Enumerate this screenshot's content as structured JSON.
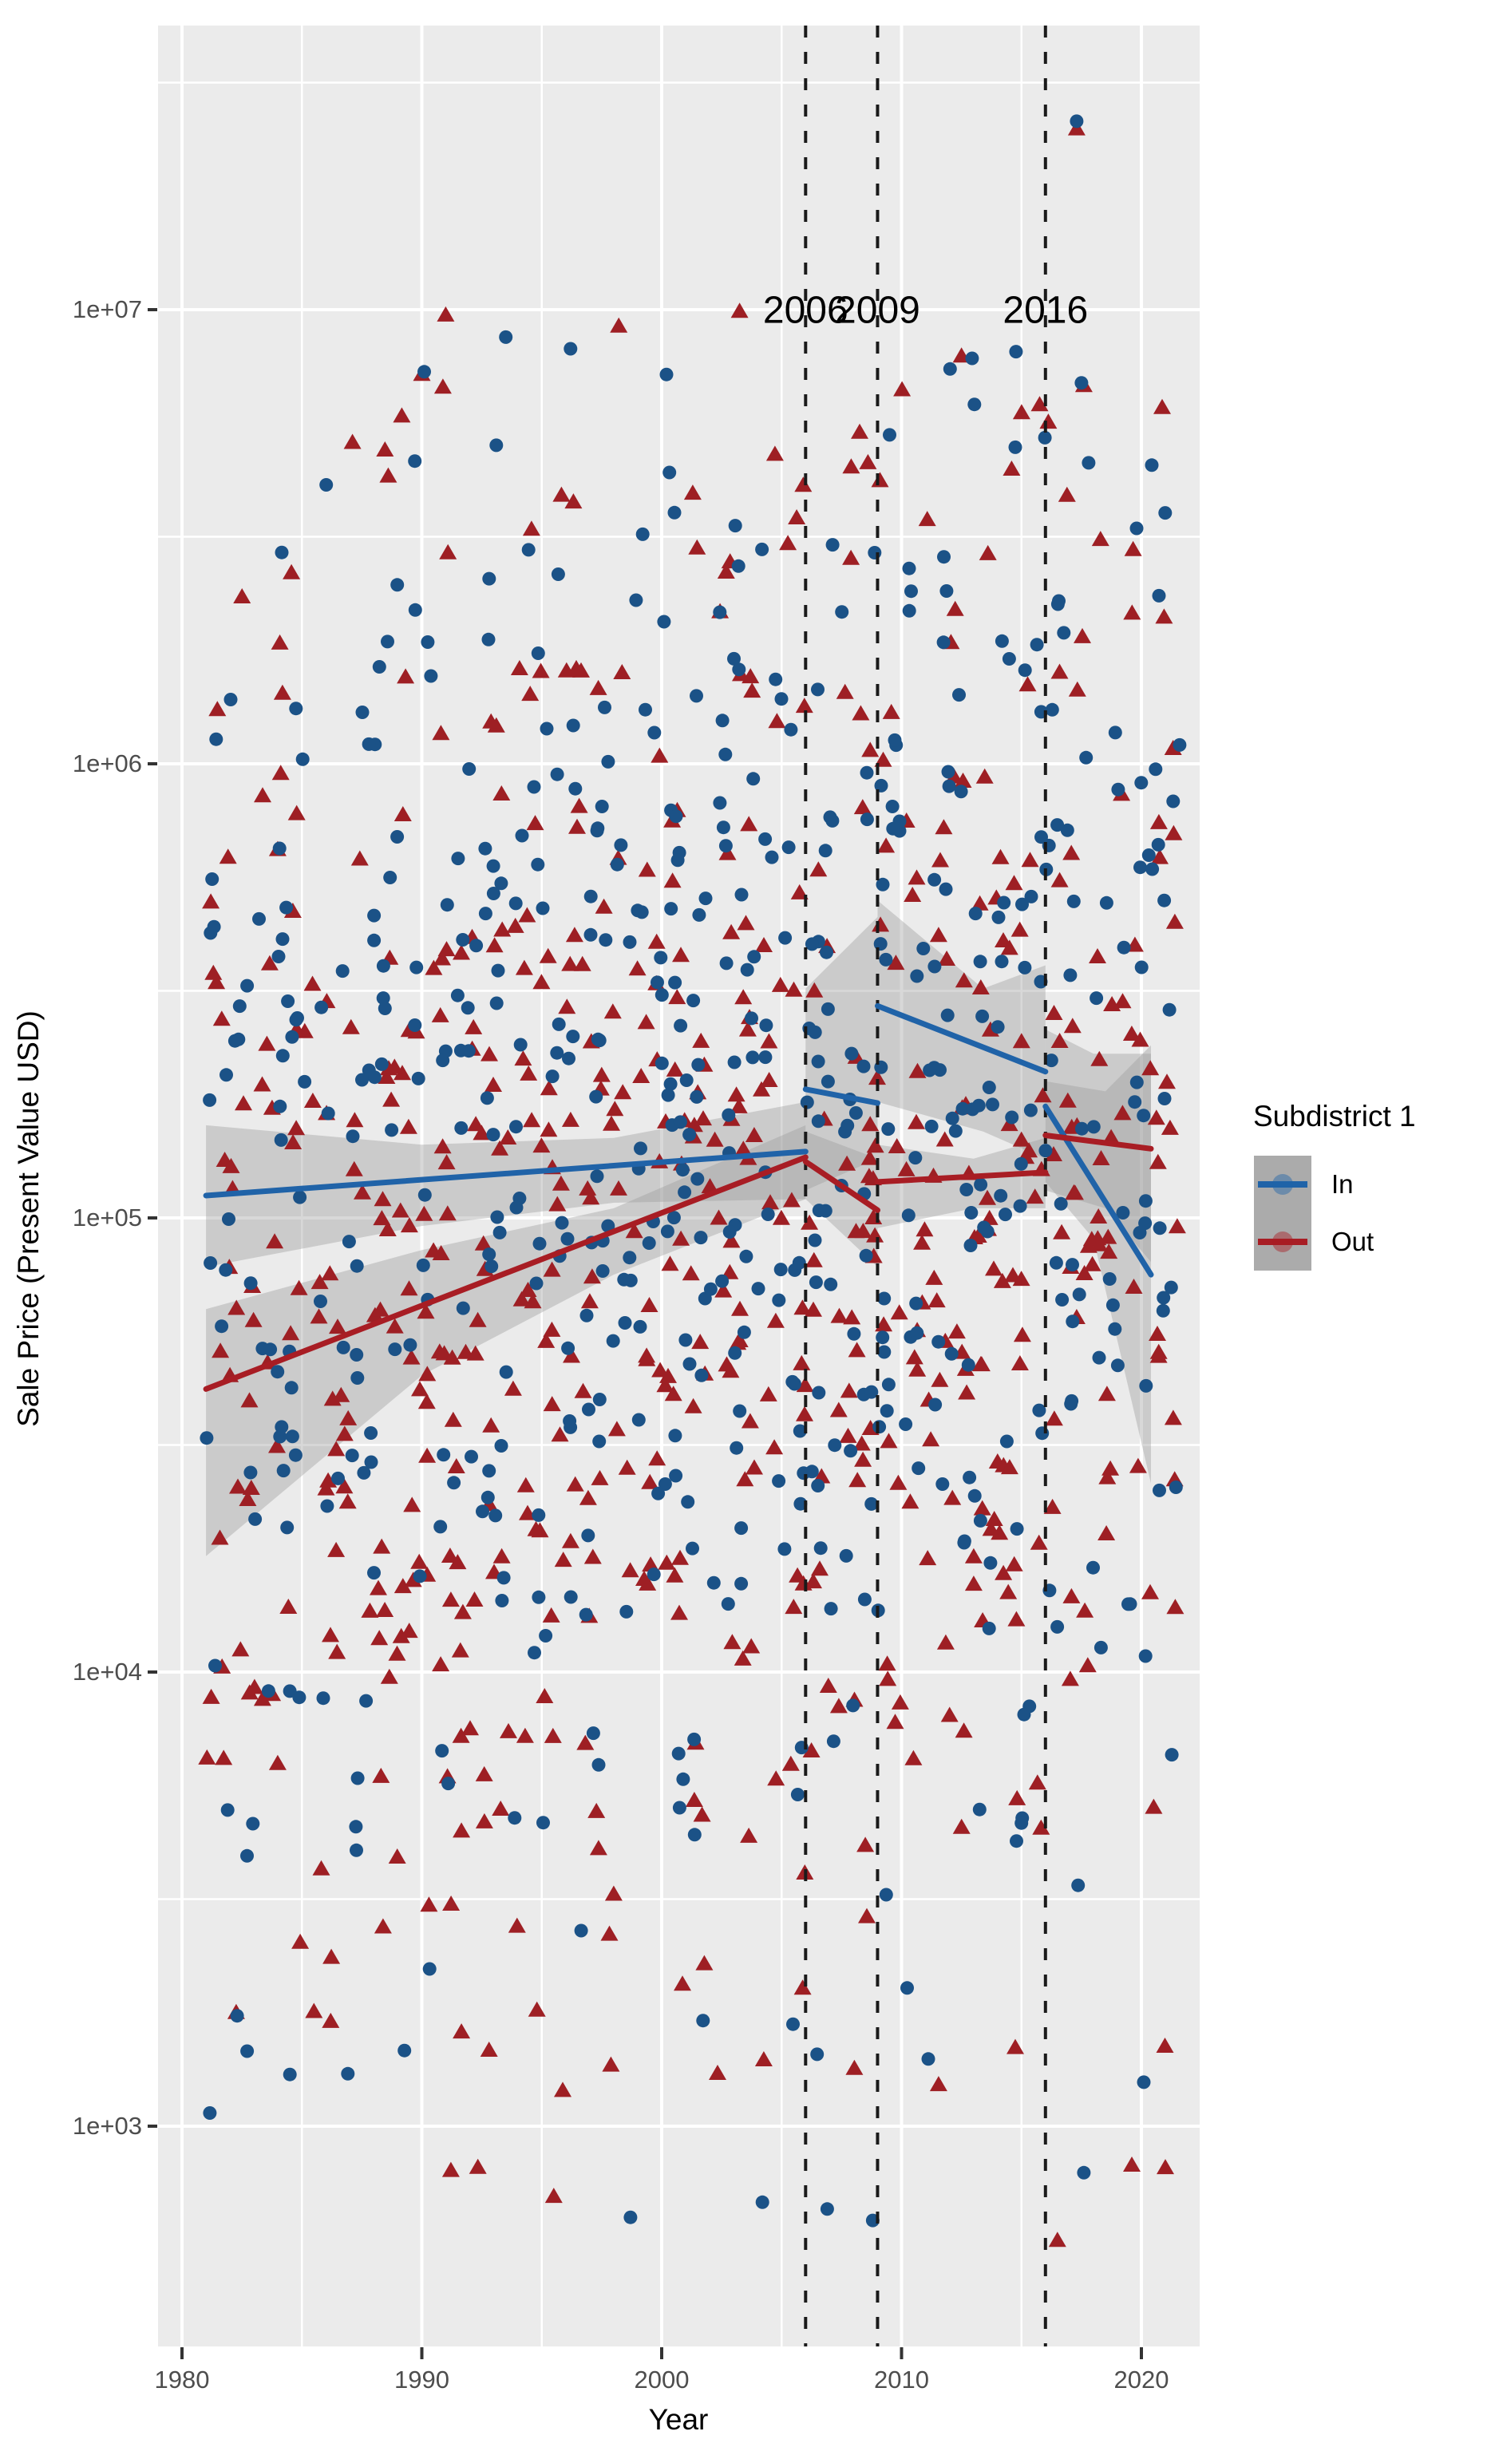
{
  "figure": {
    "background": "#ffffff",
    "panel_fill": "#ebebeb",
    "grid_color": "#ffffff",
    "tick_mark_color": "#333333",
    "tick_label_color": "#4d4d4d"
  },
  "axes": {
    "x_title": "Year",
    "y_title": "Sale Price (Present Value USD)",
    "x_tick_labels": [
      "1980",
      "1990",
      "2000",
      "2010",
      "2020"
    ],
    "y_tick_labels": [
      "1e+07",
      "1e+06",
      "1e+05",
      "1e+04",
      "1e+03"
    ]
  },
  "legend": {
    "title": "Subdistrict 1",
    "items": [
      {
        "label": "In",
        "color": "#2063A8",
        "point_color": "#1B5287",
        "marker": "circle"
      },
      {
        "label": "Out",
        "color": "#A81D24",
        "point_color": "#9E1F24",
        "marker": "triangle"
      }
    ]
  },
  "chart_data": {
    "type": "scatter",
    "title": "",
    "xlabel": "Year",
    "ylabel": "Sale Price (Present Value USD)",
    "x_ticks": [
      1980,
      1990,
      2000,
      2010,
      2020
    ],
    "x_minor_ticks": [
      1985,
      1995,
      2005,
      2015
    ],
    "y_ticks": [
      {
        "label": "1e+07",
        "value": 10000000
      },
      {
        "label": "1e+06",
        "value": 1000000
      },
      {
        "label": "1e+05",
        "value": 100000
      },
      {
        "label": "1e+04",
        "value": 10000
      },
      {
        "label": "1e+03",
        "value": 1000
      }
    ],
    "y_minor_ticks_log10": [
      3.5,
      4.5,
      5.5,
      6.5,
      7.5
    ],
    "y_scale": "log10",
    "xlim": [
      1979.0,
      2022.4
    ],
    "ylim": [
      327,
      42000000
    ],
    "grid": {
      "major": true,
      "minor": true
    },
    "legend_position": "right",
    "vline_style": {
      "color": "#1a1a1a",
      "dash": [
        15,
        18
      ],
      "width": 4
    },
    "vlines": [
      {
        "year": 2006,
        "label": "2006"
      },
      {
        "year": 2009,
        "label": "2009"
      },
      {
        "year": 2016,
        "label": "2016"
      }
    ],
    "ribbon_style": {
      "fill": "#999999",
      "opacity": 0.38
    },
    "series": [
      {
        "name": "In",
        "marker": "circle",
        "line_color": "#2063A8",
        "point_color": "#1B5287",
        "trend_segments": [
          [
            [
              1981.0,
              112000
            ],
            [
              2006.0,
              140000
            ]
          ],
          [
            [
              2006.0,
              192000
            ],
            [
              2009.0,
              179000
            ]
          ],
          [
            [
              2009.0,
              293000
            ],
            [
              2016.0,
              210000
            ]
          ],
          [
            [
              2016.0,
              176000
            ],
            [
              2020.4,
              75000
            ]
          ]
        ],
        "ribbons": [
          [
            [
              1981.0,
              160000,
              78000
            ],
            [
              1990.0,
              145000,
              96000
            ],
            [
              1998.0,
              150000,
              108000
            ],
            [
              2006.0,
              180000,
              110000
            ]
          ],
          [
            [
              2006.0,
              320000,
              115000
            ],
            [
              2009.0,
              460000,
              135000
            ]
          ],
          [
            [
              2009.0,
              500000,
              180000
            ],
            [
              2013.4,
              320000,
              155000
            ],
            [
              2016.0,
              360000,
              135000
            ]
          ],
          [
            [
              2016.0,
              260000,
              120000
            ],
            [
              2018.0,
              230000,
              90000
            ],
            [
              2020.4,
              230000,
              26000
            ]
          ]
        ],
        "scatter_cloud": {
          "seed": 101,
          "n": 580,
          "year_min": 1981.0,
          "year_max": 2021.6,
          "base_log10_at_1980": 4.93,
          "log10_trend_per_year": 0.0075,
          "log10_sd": 0.8
        },
        "notable_points": [
          [
            2017.3,
            26000000
          ],
          [
            1993.5,
            8700000
          ],
          [
            1996.2,
            8200000
          ],
          [
            1990.1,
            7300000
          ],
          [
            2000.2,
            7200000
          ],
          [
            2017.5,
            6900000
          ],
          [
            2009.5,
            5300000
          ],
          [
            2017.8,
            4600000
          ],
          [
            2019.8,
            3300000
          ],
          [
            2010.4,
            2400000
          ],
          [
            1998.7,
            630
          ],
          [
            2004.2,
            680
          ],
          [
            2008.8,
            620
          ],
          [
            2017.6,
            790
          ],
          [
            2020.1,
            1250
          ],
          [
            1984.5,
            1300
          ],
          [
            1982.3,
            1750
          ]
        ]
      },
      {
        "name": "Out",
        "marker": "triangle",
        "line_color": "#A81D24",
        "point_color": "#9E1F24",
        "trend_segments": [
          [
            [
              1981.0,
              42000
            ],
            [
              2006.0,
              136000
            ]
          ],
          [
            [
              2006.0,
              133000
            ],
            [
              2009.0,
              104000
            ]
          ],
          [
            [
              2009.0,
              120000
            ],
            [
              2016.0,
              126000
            ]
          ],
          [
            [
              2016.0,
              152000
            ],
            [
              2020.4,
              142000
            ]
          ]
        ],
        "ribbons": [
          [
            [
              1981.0,
              63000,
              18000
            ],
            [
              1990.0,
              85000,
              45000
            ],
            [
              1998.0,
              105000,
              75000
            ],
            [
              2006.0,
              160000,
              110000
            ]
          ],
          [
            [
              2006.0,
              155000,
              110000
            ],
            [
              2009.0,
              135000,
              78000
            ]
          ],
          [
            [
              2009.0,
              145000,
              95000
            ],
            [
              2013.0,
              135000,
              105000
            ],
            [
              2016.0,
              150000,
              105000
            ]
          ],
          [
            [
              2016.0,
              200000,
              115000
            ],
            [
              2018.5,
              190000,
              105000
            ],
            [
              2020.4,
              240000,
              80000
            ]
          ]
        ],
        "scatter_cloud": {
          "seed": 202,
          "n": 640,
          "year_min": 1981.0,
          "year_max": 2021.6,
          "base_log10_at_1980": 4.7,
          "log10_trend_per_year": 0.0105,
          "log10_sd": 0.8
        },
        "notable_points": [
          [
            2017.3,
            25000000
          ],
          [
            2012.5,
            7900000
          ],
          [
            1990.0,
            7200000
          ],
          [
            2017.6,
            6800000
          ],
          [
            1988.6,
            4300000
          ],
          [
            2005.9,
            4100000
          ],
          [
            2007.9,
            4500000
          ],
          [
            2009.1,
            4200000
          ],
          [
            2016.9,
            3900000
          ],
          [
            2013.6,
            2900000
          ],
          [
            2016.5,
            560
          ],
          [
            2019.6,
            820
          ],
          [
            2021.0,
            810
          ],
          [
            1995.5,
            700
          ],
          [
            1986.2,
            1700
          ],
          [
            1994.8,
            1800
          ]
        ]
      }
    ]
  }
}
